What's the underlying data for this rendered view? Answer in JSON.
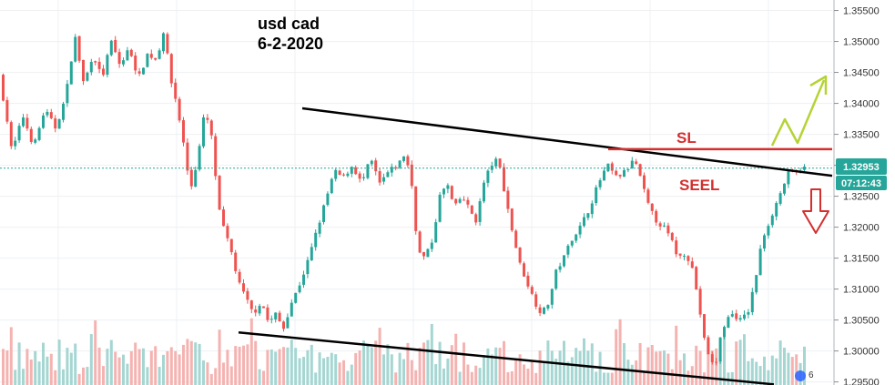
{
  "chart_data": {
    "type": "candlestick",
    "title_line1": "usd cad",
    "title_line2": "6-2-2020",
    "ylim": [
      1.2945,
      1.3567
    ],
    "y_ticks": [
      "1.35500",
      "1.35000",
      "1.34500",
      "1.34000",
      "1.33500",
      "1.33000",
      "1.32500",
      "1.32000",
      "1.31500",
      "1.31000",
      "1.30500",
      "1.30000",
      "1.29500"
    ],
    "current_price": "1.32953",
    "countdown": "07:12:43",
    "corner_badge": "6",
    "annotations": {
      "sl": "SL",
      "sell": "SEEL"
    },
    "sl_level": 1.3326,
    "price_path": [
      [
        0,
        1.3445
      ],
      [
        8,
        1.34
      ],
      [
        16,
        1.332
      ],
      [
        28,
        1.338
      ],
      [
        40,
        1.333
      ],
      [
        52,
        1.339
      ],
      [
        64,
        1.336
      ],
      [
        75,
        1.341
      ],
      [
        85,
        1.351
      ],
      [
        95,
        1.343
      ],
      [
        105,
        1.348
      ],
      [
        115,
        1.344
      ],
      [
        125,
        1.35
      ],
      [
        135,
        1.346
      ],
      [
        145,
        1.349
      ],
      [
        155,
        1.344
      ],
      [
        165,
        1.348
      ],
      [
        175,
        1.347
      ],
      [
        183,
        1.352
      ],
      [
        190,
        1.344
      ],
      [
        197,
        1.34
      ],
      [
        205,
        1.333
      ],
      [
        212,
        1.326
      ],
      [
        220,
        1.331
      ],
      [
        228,
        1.339
      ],
      [
        236,
        1.334
      ],
      [
        243,
        1.323
      ],
      [
        250,
        1.319
      ],
      [
        257,
        1.316
      ],
      [
        265,
        1.311
      ],
      [
        273,
        1.3085
      ],
      [
        281,
        1.306
      ],
      [
        290,
        1.308
      ],
      [
        298,
        1.3045
      ],
      [
        306,
        1.306
      ],
      [
        314,
        1.3035
      ],
      [
        322,
        1.3075
      ],
      [
        330,
        1.31
      ],
      [
        340,
        1.314
      ],
      [
        350,
        1.319
      ],
      [
        360,
        1.324
      ],
      [
        370,
        1.329
      ],
      [
        380,
        1.328
      ],
      [
        390,
        1.33
      ],
      [
        400,
        1.327
      ],
      [
        410,
        1.331
      ],
      [
        420,
        1.327
      ],
      [
        430,
        1.329
      ],
      [
        440,
        1.33
      ],
      [
        448,
        1.332
      ],
      [
        455,
        1.327
      ],
      [
        462,
        1.316
      ],
      [
        470,
        1.315
      ],
      [
        478,
        1.318
      ],
      [
        486,
        1.325
      ],
      [
        494,
        1.327
      ],
      [
        502,
        1.323
      ],
      [
        510,
        1.325
      ],
      [
        518,
        1.323
      ],
      [
        526,
        1.321
      ],
      [
        534,
        1.327
      ],
      [
        542,
        1.33
      ],
      [
        550,
        1.331
      ],
      [
        558,
        1.325
      ],
      [
        566,
        1.319
      ],
      [
        574,
        1.314
      ],
      [
        582,
        1.311
      ],
      [
        590,
        1.308
      ],
      [
        598,
        1.306
      ],
      [
        606,
        1.308
      ],
      [
        614,
        1.313
      ],
      [
        622,
        1.315
      ],
      [
        630,
        1.318
      ],
      [
        640,
        1.32
      ],
      [
        650,
        1.323
      ],
      [
        660,
        1.327
      ],
      [
        670,
        1.33
      ],
      [
        680,
        1.328
      ],
      [
        690,
        1.329
      ],
      [
        700,
        1.331
      ],
      [
        708,
        1.327
      ],
      [
        716,
        1.323
      ],
      [
        724,
        1.321
      ],
      [
        732,
        1.32
      ],
      [
        740,
        1.318
      ],
      [
        748,
        1.315
      ],
      [
        756,
        1.316
      ],
      [
        764,
        1.313
      ],
      [
        770,
        1.308
      ],
      [
        776,
        1.302
      ],
      [
        782,
        1.299
      ],
      [
        788,
        1.297
      ],
      [
        794,
        1.302
      ],
      [
        800,
        1.305
      ],
      [
        808,
        1.306
      ],
      [
        816,
        1.305
      ],
      [
        824,
        1.306
      ],
      [
        832,
        1.311
      ],
      [
        840,
        1.318
      ],
      [
        848,
        1.321
      ],
      [
        856,
        1.324
      ],
      [
        864,
        1.327
      ],
      [
        870,
        1.329
      ],
      [
        876,
        1.3285
      ],
      [
        882,
        1.3295
      ]
    ],
    "trendlines": [
      {
        "name": "upper",
        "x1": 332,
        "y1": 1.3392,
        "x2": 914,
        "y2": 1.3283
      },
      {
        "name": "lower",
        "x1": 262,
        "y1": 1.303,
        "x2": 850,
        "y2": 1.2946
      }
    ],
    "colors": {
      "up": "#26a69a",
      "down": "#ef5350",
      "volume_up": "#a5d6d2",
      "volume_down": "#f4b3b1",
      "trendline": "#000000",
      "sl_line": "#d32f2f",
      "sl_text": "#d32f2f",
      "bull_arrow": "#b5d334",
      "bear_arrow": "#d32f2f",
      "price_badge": "#26a69a",
      "price_line": "#26a69a",
      "grid": "#eef0f3"
    }
  }
}
